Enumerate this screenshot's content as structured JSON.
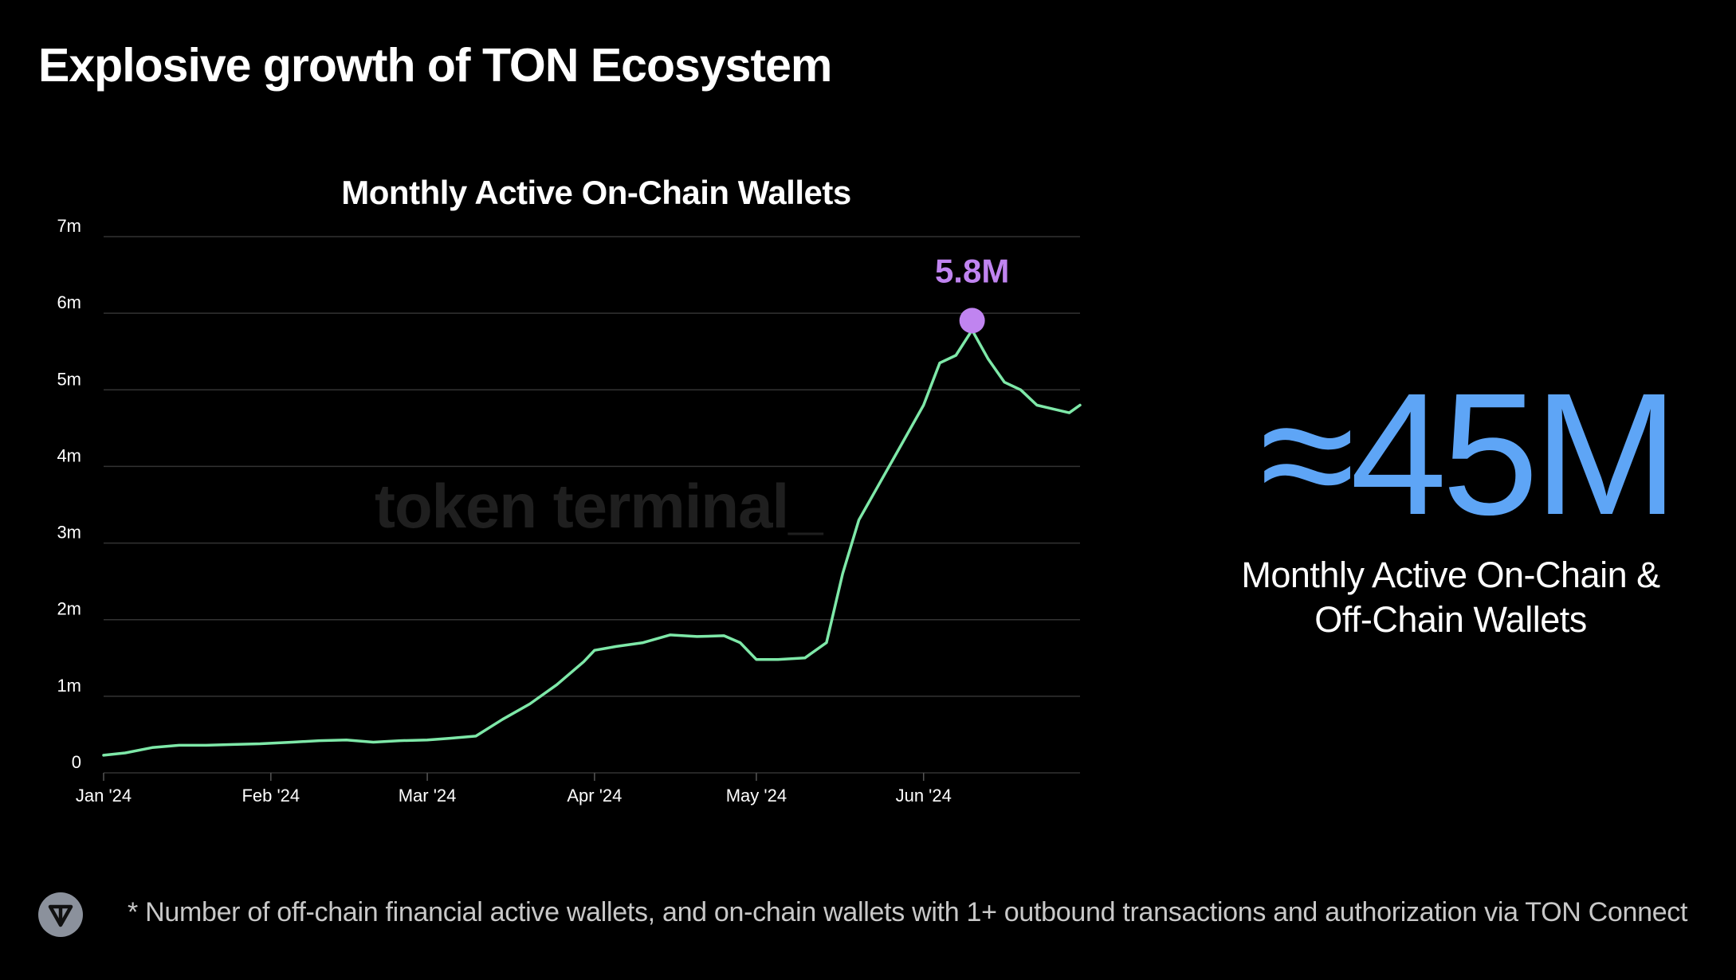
{
  "slide": {
    "title": "Explosive growth of TON Ecosystem"
  },
  "chart_data": {
    "type": "line",
    "title": "Monthly Active On-Chain Wallets",
    "xlabel": "",
    "ylabel": "",
    "y_tick_labels": [
      "0",
      "1m",
      "2m",
      "3m",
      "4m",
      "5m",
      "6m",
      "7m"
    ],
    "x_tick_labels": [
      "Jan '24",
      "Feb '24",
      "Mar '24",
      "Apr '24",
      "May '24",
      "Jun '24"
    ],
    "ylim": [
      0,
      7000000
    ],
    "xlim": [
      "2024-01-01",
      "2024-06-30"
    ],
    "grid": true,
    "series": [
      {
        "color": "#7ee8a8",
        "x": [
          "2024-01-01",
          "2024-01-05",
          "2024-01-10",
          "2024-01-15",
          "2024-01-20",
          "2024-01-25",
          "2024-01-30",
          "2024-02-05",
          "2024-02-10",
          "2024-02-15",
          "2024-02-20",
          "2024-02-25",
          "2024-03-01",
          "2024-03-05",
          "2024-03-10",
          "2024-03-15",
          "2024-03-20",
          "2024-03-25",
          "2024-03-30",
          "2024-04-01",
          "2024-04-05",
          "2024-04-10",
          "2024-04-15",
          "2024-04-20",
          "2024-04-25",
          "2024-04-28",
          "2024-05-01",
          "2024-05-05",
          "2024-05-10",
          "2024-05-14",
          "2024-05-17",
          "2024-05-20",
          "2024-05-24",
          "2024-05-28",
          "2024-06-01",
          "2024-06-04",
          "2024-06-07",
          "2024-06-10",
          "2024-06-13",
          "2024-06-16",
          "2024-06-19",
          "2024-06-22",
          "2024-06-25",
          "2024-06-28",
          "2024-06-30"
        ],
        "y": [
          230000,
          260000,
          330000,
          360000,
          360000,
          370000,
          380000,
          400000,
          420000,
          430000,
          400000,
          420000,
          430000,
          450000,
          480000,
          700000,
          900000,
          1150000,
          1450000,
          1600000,
          1650000,
          1700000,
          1800000,
          1780000,
          1790000,
          1700000,
          1480000,
          1480000,
          1500000,
          1700000,
          2600000,
          3300000,
          3800000,
          4300000,
          4800000,
          5350000,
          5450000,
          5780000,
          5400000,
          5100000,
          5000000,
          4800000,
          4750000,
          4700000,
          4800000
        ]
      }
    ],
    "annotations": [
      {
        "x": "2024-06-10",
        "y": 5800000,
        "label": "5.8M",
        "color": "#c084f0"
      }
    ]
  },
  "watermark": {
    "text": "token terminal_"
  },
  "stat": {
    "value": "≈45M",
    "label_line1": "Monthly Active On-Chain &",
    "label_line2": "Off-Chain Wallets",
    "color": "#5ea5f6"
  },
  "footnote": {
    "text": "* Number of off-chain financial active wallets, and on-chain wallets with 1+ outbound transactions and authorization via TON Connect"
  },
  "logo": {
    "icon": "ton-logo-icon"
  },
  "colors": {
    "background": "#000000",
    "line": "#7ee8a8",
    "peak_marker": "#c084f0",
    "stat": "#5ea5f6",
    "gridline": "#333333",
    "axis_text": "#ffffff"
  }
}
